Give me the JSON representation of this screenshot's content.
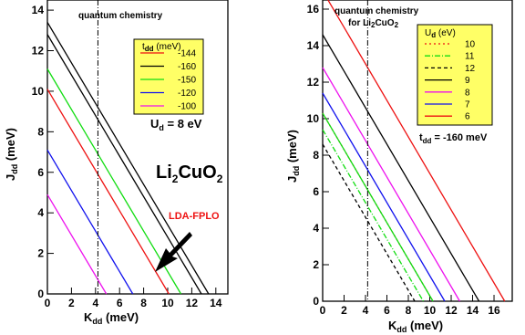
{
  "chart_data": [
    {
      "type": "line",
      "xlabel": "K",
      "xlabel_sub": "dd",
      "xlabel_unit": " (meV)",
      "ylabel": "J",
      "ylabel_sub": "dd",
      "ylabel_unit": " (meV)",
      "xlim": [
        0,
        15
      ],
      "ylim": [
        0,
        14.5
      ],
      "xticks": [
        0,
        2,
        4,
        6,
        8,
        10,
        12,
        14
      ],
      "yticks": [
        0,
        2,
        4,
        6,
        8,
        10,
        12,
        14
      ],
      "vline": {
        "x": 4.2,
        "label": "quantum chemistry"
      },
      "legend": {
        "title": "t",
        "title_sub": "dd",
        "title_unit": " (meV)",
        "position": "top-right"
      },
      "annotation_main": {
        "label": "U",
        "sub": "d",
        "rest": " = 8 eV"
      },
      "compound": {
        "label": "Li",
        "sub1": "2",
        "mid": "CuO",
        "sub2": "2"
      },
      "arrow_label": "LDA-FPLO",
      "arrow_color": "#ee1111",
      "series": [
        {
          "name": "-144",
          "color": "#ee1111",
          "x0": 10.1,
          "y0": 10.1,
          "dash": ""
        },
        {
          "name": "-160",
          "color": "#000000",
          "x0": 12.8,
          "y0": 12.8,
          "dash": ""
        },
        {
          "name": "-150",
          "color": "#11dd11",
          "x0": 11.1,
          "y0": 11.1,
          "dash": ""
        },
        {
          "name": "-120",
          "color": "#1111ee",
          "x0": 7.1,
          "y0": 7.1,
          "dash": ""
        },
        {
          "name": "-100",
          "color": "#ee11ee",
          "x0": 4.9,
          "y0": 4.9,
          "dash": ""
        }
      ],
      "extra_lines": [
        {
          "color": "#000000",
          "x0": 13.4,
          "y0": 13.4
        }
      ]
    },
    {
      "type": "line",
      "xlabel": "K",
      "xlabel_sub": "dd",
      "xlabel_unit": " (meV)",
      "ylabel": "J",
      "ylabel_sub": "dd",
      "ylabel_unit": " (meV)",
      "xlim": [
        0,
        17.7
      ],
      "ylim": [
        0,
        16.5
      ],
      "xticks": [
        0,
        2,
        4,
        6,
        8,
        10,
        12,
        14,
        16
      ],
      "yticks": [
        0,
        2,
        4,
        6,
        8,
        10,
        12,
        14,
        16
      ],
      "vline": {
        "x": 4.2,
        "label": "quantum chemistry",
        "label2": "for Li",
        "label2_sub1": "2",
        "label2_mid": "CuO",
        "label2_sub2": "2"
      },
      "legend": {
        "title": "U",
        "title_sub": "d",
        "title_unit": " (eV)",
        "position": "top-right"
      },
      "annotation_main": {
        "label": "t",
        "sub": "dd",
        "rest": " = -160 meV"
      },
      "series": [
        {
          "name": "10",
          "color": "#ee1111",
          "x0": 10.3,
          "y0": 10.3,
          "dash": "2,3"
        },
        {
          "name": "11",
          "color": "#11dd11",
          "x0": 9.4,
          "y0": 9.4,
          "dash": "6,2,1,2"
        },
        {
          "name": "12",
          "color": "#000000",
          "x0": 8.6,
          "y0": 8.6,
          "dash": "4,3"
        },
        {
          "name": "9",
          "color": "#000000",
          "x0": 14.6,
          "y0": 14.6,
          "dash": ""
        },
        {
          "name": "8",
          "color": "#ee11ee",
          "x0": 12.8,
          "y0": 12.8,
          "dash": ""
        },
        {
          "name": "7",
          "color": "#1111ee",
          "x0": 11.4,
          "y0": 11.4,
          "dash": ""
        },
        {
          "name": "6",
          "color": "#ee1111",
          "x0": 17.0,
          "y0": 17.0,
          "dash": ""
        }
      ],
      "extra_lines": [
        {
          "color": "#11dd11",
          "x0": 10.3,
          "y0": 10.3
        }
      ]
    }
  ]
}
